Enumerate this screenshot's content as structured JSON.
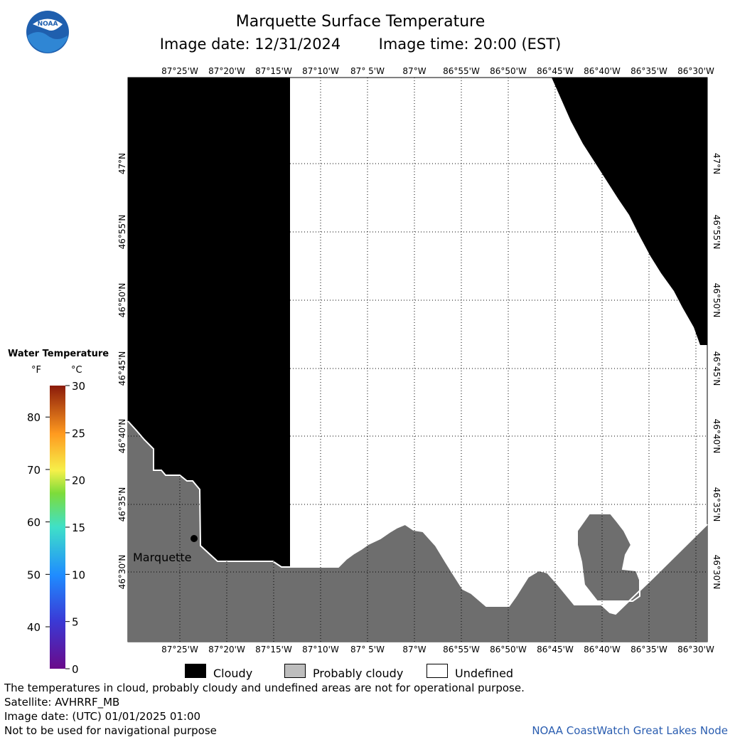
{
  "header": {
    "title": "Marquette Surface Temperature",
    "image_date_label": "Image date: 12/31/2024",
    "image_time_label": "Image time: 20:00 (EST)"
  },
  "logo": {
    "text": "NOAA",
    "icon": "noaa-logo-icon"
  },
  "map": {
    "lon_labels": [
      "87°25'W",
      "87°20'W",
      "87°15'W",
      "87°10'W",
      "87° 5'W",
      "87°W",
      "86°55'W",
      "86°50'W",
      "86°45'W",
      "86°40'W",
      "86°35'W",
      "86°30'W"
    ],
    "lat_labels": [
      "47°N",
      "46°55'N",
      "46°50'N",
      "46°45'N",
      "46°40'N",
      "46°35'N",
      "46°30'N"
    ],
    "city_label": "Marquette",
    "colors": {
      "cloudy": "#000000",
      "probably_cloudy": "#6e6e6e",
      "undefined": "#ffffff",
      "grid": "#000000"
    }
  },
  "colorbar": {
    "title": "Water Temperature",
    "unit_f": "°F",
    "unit_c": "°C",
    "f_ticks": [
      "80",
      "70",
      "60",
      "50",
      "40"
    ],
    "c_ticks": [
      "30",
      "25",
      "20",
      "15",
      "10",
      "5",
      "0"
    ]
  },
  "legend": {
    "cloudy": "Cloudy",
    "probably_cloudy": "Probably cloudy",
    "undefined": "Undefined"
  },
  "footer": {
    "disclaimer": "The temperatures in cloud, probably cloudy and undefined areas are not for operational purpose.",
    "satellite": "Satellite: AVHRRF_MB",
    "utc_date": "Image date: (UTC) 01/01/2025  01:00",
    "navigation_note": "Not to be used for navigational purpose",
    "credit": "NOAA CoastWatch Great Lakes Node"
  }
}
